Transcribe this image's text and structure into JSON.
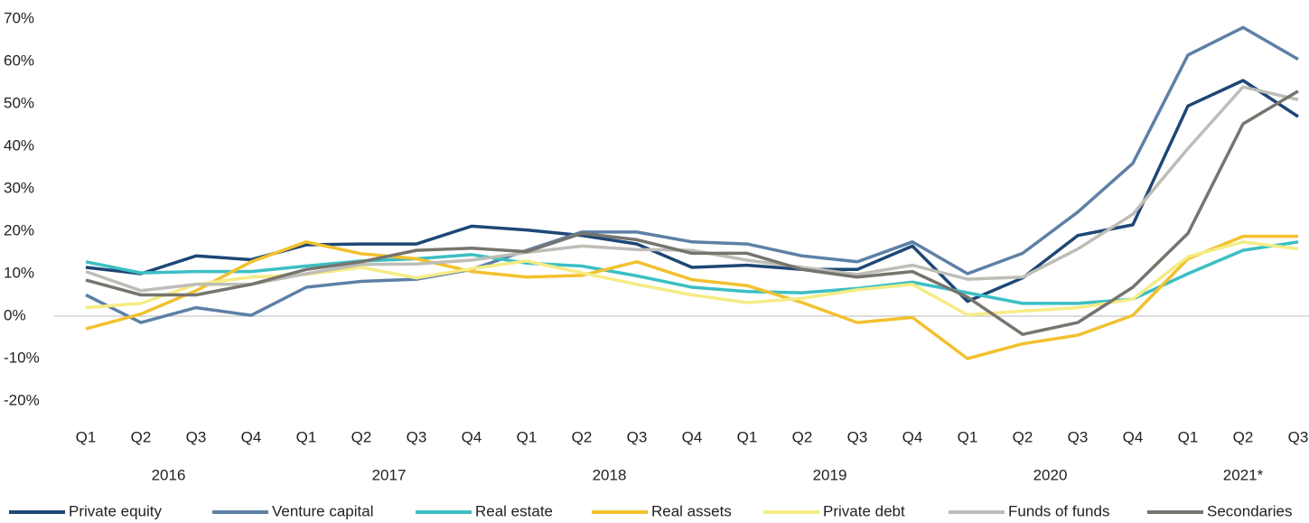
{
  "chart_data": {
    "type": "line",
    "categories": [
      "Q1",
      "Q2",
      "Q3",
      "Q4",
      "Q1",
      "Q2",
      "Q3",
      "Q4",
      "Q1",
      "Q2",
      "Q3",
      "Q4",
      "Q1",
      "Q2",
      "Q3",
      "Q4",
      "Q1",
      "Q2",
      "Q3",
      "Q4",
      "Q1",
      "Q2",
      "Q3"
    ],
    "x_groups": [
      "2016",
      "2017",
      "2018",
      "2019",
      "2020",
      "2021*"
    ],
    "ylim": [
      -20,
      70
    ],
    "yticks": [
      {
        "value": -20,
        "label": "-20%"
      },
      {
        "value": -10,
        "label": "-10%"
      },
      {
        "value": 0,
        "label": "0%"
      },
      {
        "value": 10,
        "label": "10%"
      },
      {
        "value": 20,
        "label": "20%"
      },
      {
        "value": 30,
        "label": "30%"
      },
      {
        "value": 40,
        "label": "40%"
      },
      {
        "value": 50,
        "label": "50%"
      },
      {
        "value": 60,
        "label": "60%"
      },
      {
        "value": 70,
        "label": "70%"
      }
    ],
    "grid": false,
    "legend": "bottom",
    "series": [
      {
        "name": "Private equity",
        "color": "#1d4775",
        "values": [
          11.5,
          10,
          14.2,
          13.3,
          16.8,
          17,
          17,
          21.2,
          20.3,
          19,
          17,
          11.5,
          12,
          11,
          11,
          16.5,
          3.5,
          9,
          19,
          21.5,
          49.5,
          55.5,
          47
        ]
      },
      {
        "name": "Venture capital",
        "color": "#5d80a6",
        "values": [
          5,
          -1.5,
          2,
          0.2,
          6.8,
          8.2,
          8.7,
          11,
          15.5,
          19.8,
          19.8,
          17.5,
          17,
          14.2,
          12.8,
          17.5,
          10,
          14.8,
          24.5,
          36,
          61.5,
          68,
          60.5
        ]
      },
      {
        "name": "Real estate",
        "color": "#3cbfc4",
        "values": [
          12.8,
          10.2,
          10.5,
          10.5,
          11.8,
          13,
          13.5,
          14.5,
          12.5,
          11.8,
          9.5,
          6.8,
          5.8,
          5.5,
          6.5,
          8,
          5.5,
          3,
          3,
          4,
          10,
          15.5,
          17.5
        ]
      },
      {
        "name": "Real assets",
        "color": "#f2c12e",
        "values": [
          -3,
          0.5,
          6,
          12.8,
          17.5,
          14.7,
          13.5,
          10.5,
          9.2,
          9.6,
          12.8,
          8.6,
          7.2,
          3.2,
          -1.5,
          -0.3,
          -10,
          -6.5,
          -4.5,
          0.2,
          13.5,
          18.8,
          18.8
        ]
      },
      {
        "name": "Private debt",
        "color": "#f5ec85",
        "values": [
          2,
          3,
          7.5,
          9.2,
          9.8,
          11.5,
          9,
          11.2,
          13,
          10.2,
          7.5,
          5,
          3.2,
          4.2,
          6.2,
          7.5,
          0.3,
          1.2,
          2,
          4,
          14,
          17.5,
          15.8
        ]
      },
      {
        "name": "Funds of funds",
        "color": "#bebdb7",
        "values": [
          10.5,
          6,
          7.5,
          7.5,
          10,
          12.2,
          12.3,
          13.2,
          15,
          16.5,
          15.7,
          15.5,
          13.2,
          11.5,
          9.8,
          12,
          8.7,
          9.2,
          15.8,
          24,
          39.5,
          54,
          51
        ]
      },
      {
        "name": "Secondaries",
        "color": "#77746e",
        "values": [
          8.5,
          5,
          5,
          7.5,
          11,
          12.8,
          15.5,
          16,
          15.2,
          19.5,
          18,
          14.8,
          14.8,
          11,
          9.2,
          10.5,
          4.5,
          -4.3,
          -1.5,
          6.8,
          19.5,
          45.3,
          53
        ]
      }
    ]
  }
}
